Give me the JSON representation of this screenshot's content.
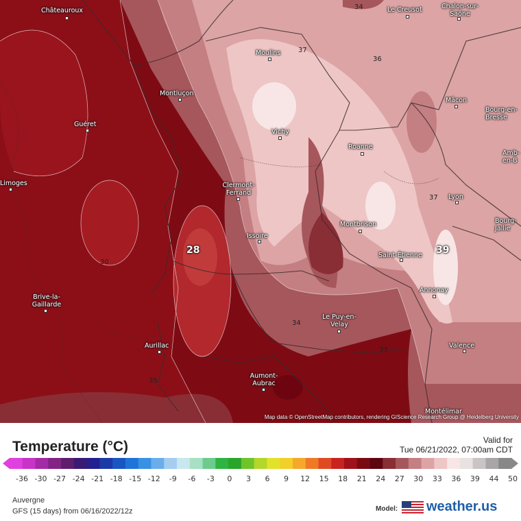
{
  "legend": {
    "title": "Temperature (°C)",
    "ticks": [
      "-36",
      "-30",
      "-27",
      "-24",
      "-21",
      "-18",
      "-15",
      "-12",
      "-9",
      "-6",
      "-3",
      "0",
      "3",
      "6",
      "9",
      "12",
      "15",
      "18",
      "21",
      "24",
      "27",
      "30",
      "33",
      "36",
      "39",
      "44",
      "50"
    ],
    "colors": [
      "#e040e0",
      "#c833c8",
      "#a52aa5",
      "#822485",
      "#5f1d6e",
      "#3b1a73",
      "#23208f",
      "#1b3aa6",
      "#1a56c2",
      "#1f74d8",
      "#3a90e2",
      "#69aeea",
      "#a4cdf0",
      "#c9e7ef",
      "#a7e0c4",
      "#6ccc8c",
      "#2fb342",
      "#2aa52a",
      "#6fc42a",
      "#b5d62a",
      "#e2e22a",
      "#f3cf2a",
      "#f6a82a",
      "#ee7a28",
      "#df4a23",
      "#c92320",
      "#a0121a",
      "#7a0a12",
      "#5e0610",
      "#8a2e36",
      "#a6575c",
      "#c47f82",
      "#dca4a5",
      "#eec6c6",
      "#f8e6e6",
      "#e8e2e2",
      "#c9c5c5",
      "#a8a6a6",
      "#888888"
    ]
  },
  "valid": {
    "label": "Valid for",
    "time": "Tue 06/21/2022, 07:00am CDT"
  },
  "region": "Auvergne",
  "model_run": "GFS (15 days) from 06/16/2022/12z",
  "model_label": "Model:",
  "brand": "weather.us",
  "attribution": "Map data © OpenStreetMap contributors, rendering GIScience Research Group @ Heidelberg University",
  "cities": [
    "Châteauroux",
    "Le Creusot",
    "Chalon-sur-Saône",
    "Moulins",
    "Montluçon",
    "Mâcon",
    "Bourg-en-Bresse",
    "Guéret",
    "Vichy",
    "Roanne",
    "Amb-en-B",
    "Limoges",
    "Clermont-Ferrand",
    "Lyon",
    "Bourg-Jallie",
    "Issoire",
    "Montbrison",
    "Saint-Étienne",
    "Annonay",
    "Brive-la-Gaillarde",
    "Le Puy-en-Velay",
    "Aurillac",
    "Valence",
    "Aumont-Aubrac",
    "Montélimar"
  ],
  "isolines": [
    "34",
    "37",
    "36",
    "30",
    "34",
    "33",
    "35",
    "37"
  ],
  "highlights": [
    "28",
    "39"
  ]
}
